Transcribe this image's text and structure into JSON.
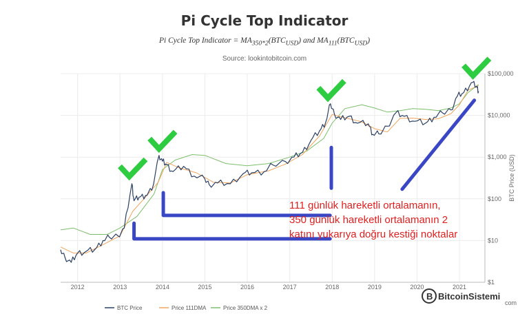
{
  "title": "Pi Cycle Top Indicator",
  "formula": "Pi Cycle Top Indicator = MA350*2(BTCUSD) and MA111(BTCUSD)",
  "source": "Source: lookintobitcoin.com",
  "annotation": [
    "111 günlük hareketli ortalamanın,",
    "350 günlük hareketli ortalamanın 2",
    "katını yukarıya doğru kestiği noktalar"
  ],
  "watermark": "BitcoinSistemi",
  "watermark_sub": "com",
  "colors": {
    "price": "#2b3f63",
    "dma111": "#f0a45c",
    "dma350x2": "#7cbf6b",
    "check": "#2ecc40",
    "arrow": "#3a47c4",
    "annotation": "#e02020"
  },
  "chart_data": {
    "type": "line",
    "xlabel": "",
    "ylabel": "BTC Price (USD)",
    "yscale": "log",
    "ylim": [
      1,
      100000
    ],
    "xlim": [
      2011.6,
      2021.6
    ],
    "x_ticks": [
      "2012",
      "2013",
      "2014",
      "2015",
      "2016",
      "2017",
      "2018",
      "2019",
      "2020",
      "2021"
    ],
    "y_ticks": [
      "$1",
      "$10",
      "$100",
      "$1,000",
      "$10,000",
      "$100,000"
    ],
    "legend": [
      "BTC Price",
      "Price 111DMA",
      "Price 350DMA x 2"
    ],
    "legend_position": "bottom",
    "grid": true,
    "series": [
      {
        "name": "BTC Price",
        "x": [
          2011.6,
          2011.7,
          2011.85,
          2012.0,
          2012.2,
          2012.4,
          2012.6,
          2012.75,
          2012.95,
          2013.1,
          2013.28,
          2013.33,
          2013.45,
          2013.6,
          2013.75,
          2013.92,
          2014.0,
          2014.1,
          2014.25,
          2014.5,
          2014.75,
          2015.0,
          2015.1,
          2015.3,
          2015.6,
          2015.9,
          2016.1,
          2016.4,
          2016.6,
          2016.9,
          2017.1,
          2017.3,
          2017.5,
          2017.7,
          2017.85,
          2017.96,
          2018.05,
          2018.2,
          2018.4,
          2018.6,
          2018.85,
          2018.96,
          2019.1,
          2019.3,
          2019.5,
          2019.7,
          2019.95,
          2020.2,
          2020.4,
          2020.6,
          2020.8,
          2020.95,
          2021.1,
          2021.28,
          2021.4,
          2021.45
        ],
        "values": [
          6,
          4,
          3,
          5,
          5.5,
          6,
          10,
          12,
          13,
          20,
          230,
          90,
          110,
          120,
          160,
          1100,
          800,
          650,
          450,
          600,
          350,
          300,
          220,
          240,
          230,
          400,
          420,
          450,
          650,
          780,
          1000,
          1300,
          2500,
          4200,
          7000,
          19000,
          11000,
          8000,
          9500,
          6500,
          6300,
          3500,
          3600,
          5500,
          11500,
          9500,
          7200,
          6500,
          9000,
          11500,
          13500,
          29000,
          35000,
          61000,
          50000,
          38000
        ]
      },
      {
        "name": "Price 111DMA",
        "x": [
          2011.6,
          2011.9,
          2012.2,
          2012.6,
          2013.0,
          2013.3,
          2013.6,
          2013.9,
          2014.1,
          2014.4,
          2014.8,
          2015.2,
          2015.6,
          2016.0,
          2016.5,
          2016.9,
          2017.3,
          2017.7,
          2018.0,
          2018.3,
          2018.7,
          2019.0,
          2019.3,
          2019.6,
          2019.9,
          2020.2,
          2020.5,
          2020.8,
          2021.0,
          2021.2,
          2021.45
        ],
        "values": [
          7,
          5,
          5,
          8,
          13,
          50,
          110,
          250,
          750,
          550,
          420,
          250,
          240,
          380,
          470,
          680,
          1150,
          3200,
          10500,
          8800,
          7000,
          4800,
          4000,
          8500,
          8600,
          8000,
          8300,
          11000,
          18000,
          40000,
          52000
        ]
      },
      {
        "name": "Price 350DMA x 2",
        "x": [
          2011.6,
          2011.9,
          2012.3,
          2012.7,
          2013.0,
          2013.4,
          2013.8,
          2014.0,
          2014.3,
          2014.7,
          2015.0,
          2015.5,
          2016.0,
          2016.5,
          2017.0,
          2017.4,
          2017.8,
          2018.0,
          2018.3,
          2018.7,
          2019.0,
          2019.3,
          2019.6,
          2019.9,
          2020.2,
          2020.5,
          2020.8,
          2021.0,
          2021.2,
          2021.45
        ],
        "values": [
          18,
          20,
          14,
          14,
          20,
          38,
          130,
          500,
          850,
          1150,
          1100,
          700,
          620,
          700,
          1000,
          1400,
          2800,
          6500,
          14500,
          18000,
          15000,
          12000,
          13000,
          14500,
          14000,
          13000,
          15000,
          19000,
          35000,
          55000
        ]
      }
    ]
  },
  "markers": {
    "checkmarks": [
      {
        "x": 2013.3,
        "y": 500
      },
      {
        "x": 2014.0,
        "y": 2300
      },
      {
        "x": 2017.98,
        "y": 38000
      },
      {
        "x": 2021.4,
        "y": 160000
      }
    ],
    "arrows": [
      {
        "from": [
          2014.02,
          140
        ],
        "to": [
          2014.02,
          40
        ],
        "to2": [
          2017.95,
          40
        ]
      },
      {
        "from": [
          2013.33,
          26
        ],
        "to": [
          2013.33,
          11
        ],
        "to2": [
          2017.95,
          11
        ]
      },
      {
        "from": [
          2017.98,
          1700
        ],
        "to": [
          2017.98,
          180
        ]
      },
      {
        "from": [
          2019.65,
          170
        ],
        "to": [
          2021.35,
          23000
        ]
      }
    ]
  }
}
